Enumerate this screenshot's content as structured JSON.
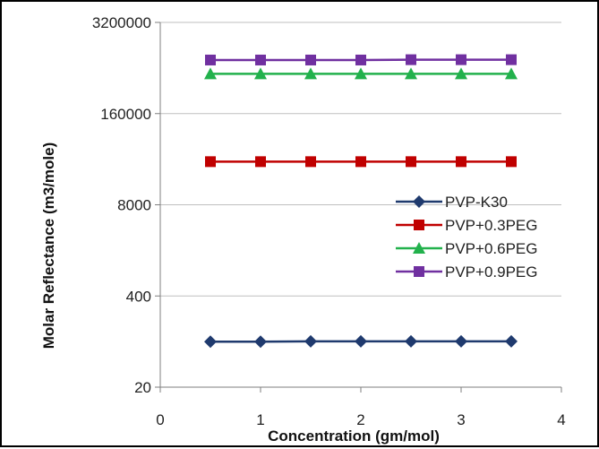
{
  "chart_data": {
    "type": "line",
    "title": "",
    "xlabel": "Concentration (gm/mol)",
    "ylabel": "Molar Reflectance (m3/mole)",
    "xlim": [
      0,
      4
    ],
    "xticks": [
      "0",
      "1",
      "2",
      "3",
      "4"
    ],
    "y_scale": "log20",
    "ylim": [
      20,
      3200000
    ],
    "yticks": [
      "20",
      "400",
      "8000",
      "160000",
      "3200000"
    ],
    "grid": "horizontal",
    "legend_position": "center-right",
    "x": [
      0.5,
      1.0,
      1.5,
      2.0,
      2.5,
      3.0,
      3.5
    ],
    "series": [
      {
        "name": "PVP-K30",
        "color": "#1f3a6e",
        "marker": "diamond",
        "values": [
          89,
          89,
          90,
          90,
          90,
          90,
          90
        ]
      },
      {
        "name": "PVP+0.3PEG",
        "color": "#c00000",
        "marker": "square",
        "values": [
          33000,
          33000,
          33000,
          33000,
          33000,
          33000,
          33000
        ]
      },
      {
        "name": "PVP+0.6PEG",
        "color": "#22b14c",
        "marker": "triangle",
        "values": [
          590000,
          590000,
          590000,
          590000,
          590000,
          590000,
          590000
        ]
      },
      {
        "name": "PVP+0.9PEG",
        "color": "#7030a0",
        "marker": "square",
        "values": [
          930000,
          930000,
          930000,
          930000,
          940000,
          940000,
          940000
        ]
      }
    ]
  }
}
